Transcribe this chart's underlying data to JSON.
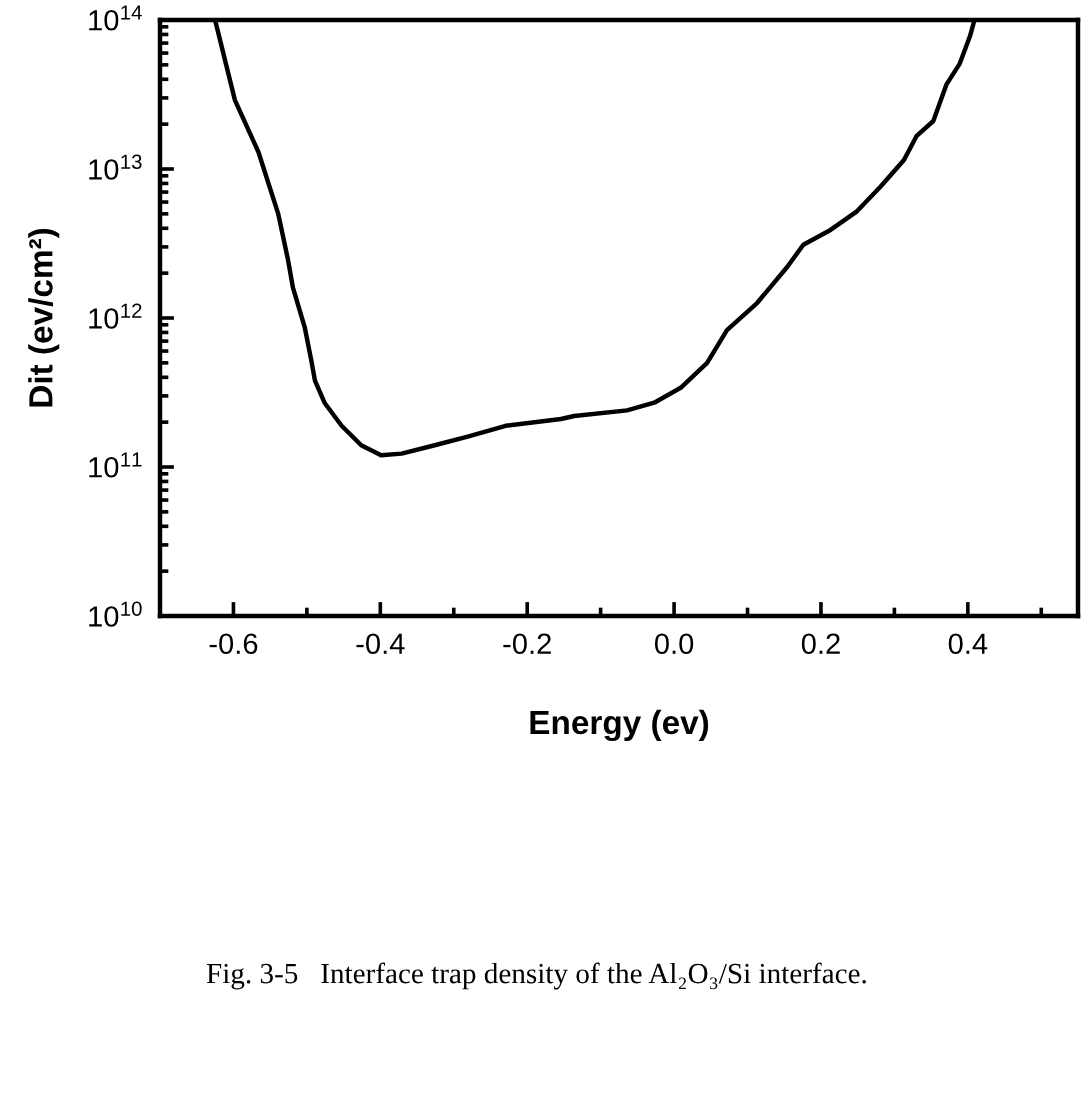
{
  "chart_data": {
    "type": "line",
    "xlabel": "Energy (ev)",
    "ylabel": "Dit (ev/cm²)",
    "annotations": [
      "Fig. 3-5   Interface trap density of the Al₂O₃/Si interface."
    ],
    "log": "y",
    "xlim": [
      -0.7,
      0.55
    ],
    "ylim": [
      10000000000.0,
      100000000000000.0
    ],
    "xticks": [
      {
        "value": -0.6,
        "label": "-0.6"
      },
      {
        "value": -0.5,
        "label": null
      },
      {
        "value": -0.4,
        "label": "-0.4"
      },
      {
        "value": -0.3,
        "label": null
      },
      {
        "value": -0.2,
        "label": "-0.2"
      },
      {
        "value": -0.1,
        "label": null
      },
      {
        "value": 0.0,
        "label": "0.0"
      },
      {
        "value": 0.1,
        "label": null
      },
      {
        "value": 0.2,
        "label": "0.2"
      },
      {
        "value": 0.3,
        "label": null
      },
      {
        "value": 0.4,
        "label": "0.4"
      },
      {
        "value": 0.5,
        "label": null
      }
    ],
    "yticks": [
      {
        "value": 10000000000.0,
        "label": "10$^{10}$"
      },
      {
        "value": 100000000000.0,
        "label": "10$^{11}$"
      },
      {
        "value": 1000000000000.0,
        "label": "10$^{12}$"
      },
      {
        "value": 10000000000000.0,
        "label": "10$^{13}$"
      },
      {
        "value": 100000000000000.0,
        "label": "10$^{14}$"
      }
    ],
    "marker": "none",
    "line_style": "solid",
    "x": [
      -0.625,
      -0.598,
      -0.566,
      -0.539,
      -0.526,
      -0.519,
      -0.503,
      -0.494,
      -0.489,
      -0.476,
      -0.453,
      -0.426,
      -0.399,
      -0.371,
      -0.326,
      -0.281,
      -0.227,
      -0.154,
      -0.136,
      -0.064,
      -0.027,
      0.009,
      0.045,
      0.072,
      0.113,
      0.154,
      0.176,
      0.213,
      0.249,
      0.281,
      0.313,
      0.33,
      0.353,
      0.371,
      0.389,
      0.403,
      0.409
    ],
    "series": [
      {
        "color": "#000000",
        "values": [
          100000000000000.0,
          29000000000000.0,
          13000000000000.0,
          5000000000000.0,
          2500000000000.0,
          1600000000000.0,
          870000000000.0,
          520000000000.0,
          380000000000.0,
          270000000000.0,
          190000000000.0,
          140000000000.0,
          120000000000.0,
          123000000000.0,
          140000000000.0,
          160000000000.0,
          190000000000.0,
          210000000000.0,
          220000000000.0,
          240000000000.0,
          270000000000.0,
          340000000000.0,
          500000000000.0,
          830000000000.0,
          1260000000000.0,
          2200000000000.0,
          3100000000000.0,
          3900000000000.0,
          5200000000000.0,
          7600000000000.0,
          11500000000000.0,
          16600000000000.0,
          21000000000000.0,
          37000000000000.0,
          51000000000000.0,
          78000000000000.0,
          100000000000000.0
        ]
      }
    ]
  }
}
